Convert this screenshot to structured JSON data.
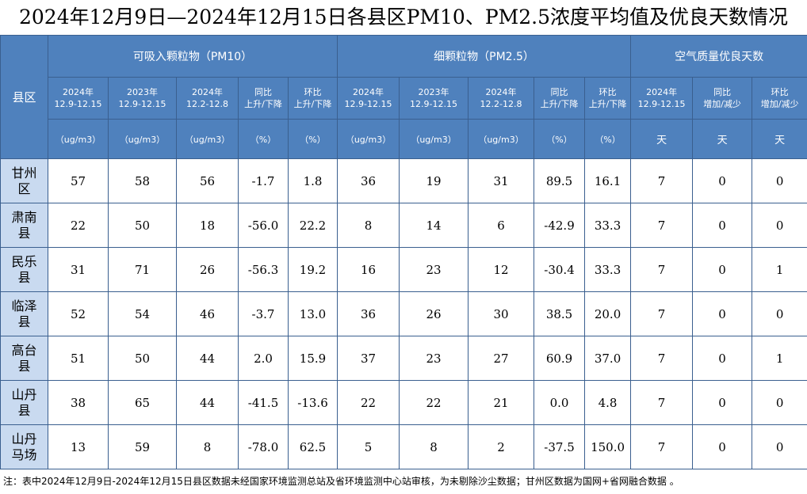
{
  "title": "2024年12月9日—2024年12月15日各县区PM10、PM2.5浓度平均值及优良天数情况",
  "table": {
    "corner": "县区",
    "groups": [
      "可吸入颗粒物（PM10）",
      "细颗粒物（PM2.5）",
      "空气质量优良天数"
    ],
    "columns": [
      [
        "2024年",
        "12.9-12.15"
      ],
      [
        "2023年",
        "12.9-12.15"
      ],
      [
        "2024年",
        "12.2-12.8"
      ],
      [
        "同比",
        "上升/下降"
      ],
      [
        "环比",
        "上升/下降"
      ],
      [
        "2024年",
        "12.9-12.15"
      ],
      [
        "2023年",
        "12.9-12.15"
      ],
      [
        "2024年",
        "12.2-12.8"
      ],
      [
        "同比",
        "上升/下降"
      ],
      [
        "环比",
        "上升/下降"
      ],
      [
        "2024年",
        "12.9-12.15"
      ],
      [
        "同比",
        "增加/减少"
      ],
      [
        "环比",
        "增加/减少"
      ]
    ],
    "units": [
      "（ug/m3）",
      "（ug/m3）",
      "（ug/m3）",
      "（%）",
      "（%）",
      "（ug/m3）",
      "（ug/m3）",
      "（ug/m3）",
      "（%）",
      "（%）",
      "天",
      "天",
      "天"
    ],
    "rows": [
      {
        "name": "甘州区",
        "cells": [
          "57",
          "58",
          "56",
          "-1.7",
          "1.8",
          "36",
          "19",
          "31",
          "89.5",
          "16.1",
          "7",
          "0",
          "0"
        ]
      },
      {
        "name": "肃南县",
        "cells": [
          "22",
          "50",
          "18",
          "-56.0",
          "22.2",
          "8",
          "14",
          "6",
          "-42.9",
          "33.3",
          "7",
          "0",
          "0"
        ]
      },
      {
        "name": "民乐县",
        "cells": [
          "31",
          "71",
          "26",
          "-56.3",
          "19.2",
          "16",
          "23",
          "12",
          "-30.4",
          "33.3",
          "7",
          "0",
          "1"
        ]
      },
      {
        "name": "临泽县",
        "cells": [
          "52",
          "54",
          "46",
          "-3.7",
          "13.0",
          "36",
          "26",
          "30",
          "38.5",
          "20.0",
          "7",
          "0",
          "0"
        ]
      },
      {
        "name": "高台县",
        "cells": [
          "51",
          "50",
          "44",
          "2.0",
          "15.9",
          "37",
          "23",
          "27",
          "60.9",
          "37.0",
          "7",
          "0",
          "1"
        ]
      },
      {
        "name": "山丹县",
        "cells": [
          "38",
          "65",
          "44",
          "-41.5",
          "-13.6",
          "22",
          "22",
          "21",
          "0.0",
          "4.8",
          "7",
          "0",
          "0"
        ]
      },
      {
        "name": "山丹马场",
        "cells": [
          "13",
          "59",
          "8",
          "-78.0",
          "62.5",
          "5",
          "8",
          "2",
          "-37.5",
          "150.0",
          "7",
          "0",
          "0"
        ]
      }
    ]
  },
  "note": "注：表中2024年12月9日-2024年12月15日县区数据未经国家环境监测总站及省环境监测中心站审核，为未剔除沙尘数据；甘州区数据为国网+省网融合数据 。"
}
